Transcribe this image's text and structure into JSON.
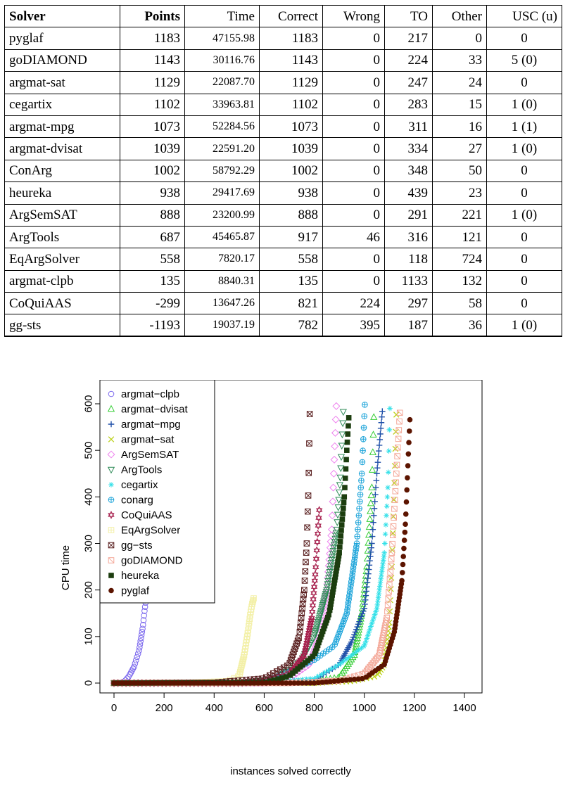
{
  "table": {
    "headers": [
      "Solver",
      "Points",
      "Time",
      "Correct",
      "Wrong",
      "TO",
      "Other",
      "USC (u)"
    ],
    "rows": [
      [
        "pyglaf",
        "1183",
        "47155.98",
        "1183",
        "0",
        "217",
        "0",
        "0"
      ],
      [
        "goDIAMOND",
        "1143",
        "30116.76",
        "1143",
        "0",
        "224",
        "33",
        "5 (0)"
      ],
      [
        "argmat-sat",
        "1129",
        "22087.70",
        "1129",
        "0",
        "247",
        "24",
        "0"
      ],
      [
        "cegartix",
        "1102",
        "33963.81",
        "1102",
        "0",
        "283",
        "15",
        "1 (0)"
      ],
      [
        "argmat-mpg",
        "1073",
        "52284.56",
        "1073",
        "0",
        "311",
        "16",
        "1 (1)"
      ],
      [
        "argmat-dvisat",
        "1039",
        "22591.20",
        "1039",
        "0",
        "334",
        "27",
        "1 (0)"
      ],
      [
        "ConArg",
        "1002",
        "58792.29",
        "1002",
        "0",
        "348",
        "50",
        "0"
      ],
      [
        "heureka",
        "938",
        "29417.69",
        "938",
        "0",
        "439",
        "23",
        "0"
      ],
      [
        "ArgSemSAT",
        "888",
        "23200.99",
        "888",
        "0",
        "291",
        "221",
        "1 (0)"
      ],
      [
        "ArgTools",
        "687",
        "45465.87",
        "917",
        "46",
        "316",
        "121",
        "0"
      ],
      [
        "EqArgSolver",
        "558",
        "7820.17",
        "558",
        "0",
        "118",
        "724",
        "0"
      ],
      [
        "argmat-clpb",
        "135",
        "8840.31",
        "135",
        "0",
        "1133",
        "132",
        "0"
      ],
      [
        "CoQuiAAS",
        "-299",
        "13647.26",
        "821",
        "224",
        "297",
        "58",
        "0"
      ],
      [
        "gg-sts",
        "-1193",
        "19037.19",
        "782",
        "395",
        "187",
        "36",
        "1 (0)"
      ]
    ]
  },
  "chart_data": {
    "type": "scatter",
    "xlabel": "instances solved correctly",
    "ylabel": "CPU time",
    "xlim": [
      0,
      1400
    ],
    "ylim": [
      0,
      600
    ],
    "xticks": [
      0,
      200,
      400,
      600,
      800,
      1000,
      1200,
      1400
    ],
    "yticks": [
      0,
      100,
      200,
      300,
      400,
      500,
      600
    ],
    "legend_position": "top-left",
    "series": [
      {
        "name": "argmat−clpb",
        "color": "#7b68ee",
        "marker": "circle-open",
        "n": 135,
        "points": [
          [
            0,
            0
          ],
          [
            40,
            2
          ],
          [
            60,
            15
          ],
          [
            80,
            35
          ],
          [
            100,
            70
          ],
          [
            115,
            120
          ],
          [
            122,
            155
          ],
          [
            130,
            190
          ],
          [
            135,
            200
          ]
        ]
      },
      {
        "name": "argmat−dvisat",
        "color": "#32cd32",
        "marker": "triangle-up-open",
        "n": 1039,
        "points": [
          [
            0,
            0
          ],
          [
            600,
            0
          ],
          [
            800,
            4
          ],
          [
            900,
            12
          ],
          [
            960,
            60
          ],
          [
            990,
            150
          ],
          [
            1010,
            250
          ],
          [
            1030,
            420
          ],
          [
            1039,
            590
          ]
        ]
      },
      {
        "name": "argmat−mpg",
        "color": "#1e4fa8",
        "marker": "plus",
        "n": 1073,
        "points": [
          [
            0,
            0
          ],
          [
            600,
            0
          ],
          [
            800,
            6
          ],
          [
            900,
            40
          ],
          [
            950,
            90
          ],
          [
            1000,
            160
          ],
          [
            1030,
            300
          ],
          [
            1050,
            450
          ],
          [
            1073,
            590
          ]
        ]
      },
      {
        "name": "argmat−sat",
        "color": "#bcd11a",
        "marker": "cross",
        "n": 1129,
        "points": [
          [
            0,
            0
          ],
          [
            800,
            0
          ],
          [
            950,
            4
          ],
          [
            1050,
            15
          ],
          [
            1080,
            40
          ],
          [
            1100,
            130
          ],
          [
            1110,
            250
          ],
          [
            1120,
            430
          ],
          [
            1129,
            595
          ]
        ]
      },
      {
        "name": "ArgSemSAT",
        "color": "#ee82ee",
        "marker": "diamond-open",
        "n": 888,
        "points": [
          [
            0,
            0
          ],
          [
            600,
            0
          ],
          [
            700,
            10
          ],
          [
            780,
            40
          ],
          [
            820,
            100
          ],
          [
            850,
            200
          ],
          [
            870,
            330
          ],
          [
            880,
            480
          ],
          [
            888,
            595
          ]
        ]
      },
      {
        "name": "ArgTools",
        "color": "#2e8b57",
        "marker": "triangle-down-open",
        "n": 917,
        "points": [
          [
            0,
            0
          ],
          [
            500,
            0
          ],
          [
            650,
            10
          ],
          [
            750,
            50
          ],
          [
            800,
            100
          ],
          [
            850,
            200
          ],
          [
            890,
            330
          ],
          [
            905,
            450
          ],
          [
            917,
            595
          ]
        ]
      },
      {
        "name": "cegartix",
        "color": "#33e0e8",
        "marker": "asterisk",
        "n": 1102,
        "points": [
          [
            0,
            0
          ],
          [
            600,
            0
          ],
          [
            800,
            10
          ],
          [
            900,
            40
          ],
          [
            1000,
            80
          ],
          [
            1050,
            160
          ],
          [
            1080,
            280
          ],
          [
            1095,
            430
          ],
          [
            1102,
            590
          ]
        ]
      },
      {
        "name": "conarg",
        "color": "#1aa3d9",
        "marker": "circle-plus",
        "n": 1002,
        "points": [
          [
            0,
            0
          ],
          [
            600,
            2
          ],
          [
            700,
            25
          ],
          [
            800,
            50
          ],
          [
            880,
            80
          ],
          [
            930,
            150
          ],
          [
            970,
            300
          ],
          [
            990,
            450
          ],
          [
            1002,
            598
          ]
        ]
      },
      {
        "name": "CoQuiAAS",
        "color": "#a51c4a",
        "marker": "star-of-david",
        "n": 821,
        "points": [
          [
            0,
            0
          ],
          [
            500,
            0
          ],
          [
            600,
            5
          ],
          [
            700,
            20
          ],
          [
            760,
            60
          ],
          [
            790,
            140
          ],
          [
            805,
            240
          ],
          [
            815,
            330
          ],
          [
            821,
            380
          ]
        ]
      },
      {
        "name": "EqArgSolver",
        "color": "#f3f0a8",
        "marker": "square-plus",
        "n": 558,
        "points": [
          [
            0,
            0
          ],
          [
            300,
            1
          ],
          [
            450,
            4
          ],
          [
            500,
            15
          ],
          [
            520,
            60
          ],
          [
            535,
            110
          ],
          [
            545,
            150
          ],
          [
            552,
            170
          ],
          [
            558,
            182
          ]
        ]
      },
      {
        "name": "gg−sts",
        "color": "#5a2020",
        "marker": "square-x",
        "n": 782,
        "points": [
          [
            0,
            0
          ],
          [
            400,
            1
          ],
          [
            600,
            10
          ],
          [
            700,
            40
          ],
          [
            740,
            100
          ],
          [
            760,
            200
          ],
          [
            770,
            300
          ],
          [
            777,
            420
          ],
          [
            782,
            578
          ]
        ]
      },
      {
        "name": "goDIAMOND",
        "color": "#f4a99a",
        "marker": "square-x-open",
        "n": 1143,
        "points": [
          [
            0,
            0
          ],
          [
            700,
            0
          ],
          [
            900,
            5
          ],
          [
            1000,
            20
          ],
          [
            1060,
            60
          ],
          [
            1090,
            140
          ],
          [
            1110,
            280
          ],
          [
            1128,
            450
          ],
          [
            1143,
            590
          ]
        ]
      },
      {
        "name": "heureka",
        "color": "#1c3d0f",
        "marker": "square-filled",
        "n": 938,
        "points": [
          [
            0,
            0
          ],
          [
            600,
            1
          ],
          [
            700,
            15
          ],
          [
            800,
            60
          ],
          [
            860,
            150
          ],
          [
            900,
            280
          ],
          [
            920,
            400
          ],
          [
            930,
            500
          ],
          [
            938,
            570
          ]
        ]
      },
      {
        "name": "pyglaf",
        "color": "#5c1400",
        "marker": "circle-filled",
        "n": 1183,
        "points": [
          [
            0,
            0
          ],
          [
            800,
            0
          ],
          [
            1000,
            10
          ],
          [
            1080,
            40
          ],
          [
            1120,
            110
          ],
          [
            1150,
            220
          ],
          [
            1165,
            350
          ],
          [
            1175,
            480
          ],
          [
            1183,
            578
          ]
        ]
      }
    ]
  }
}
